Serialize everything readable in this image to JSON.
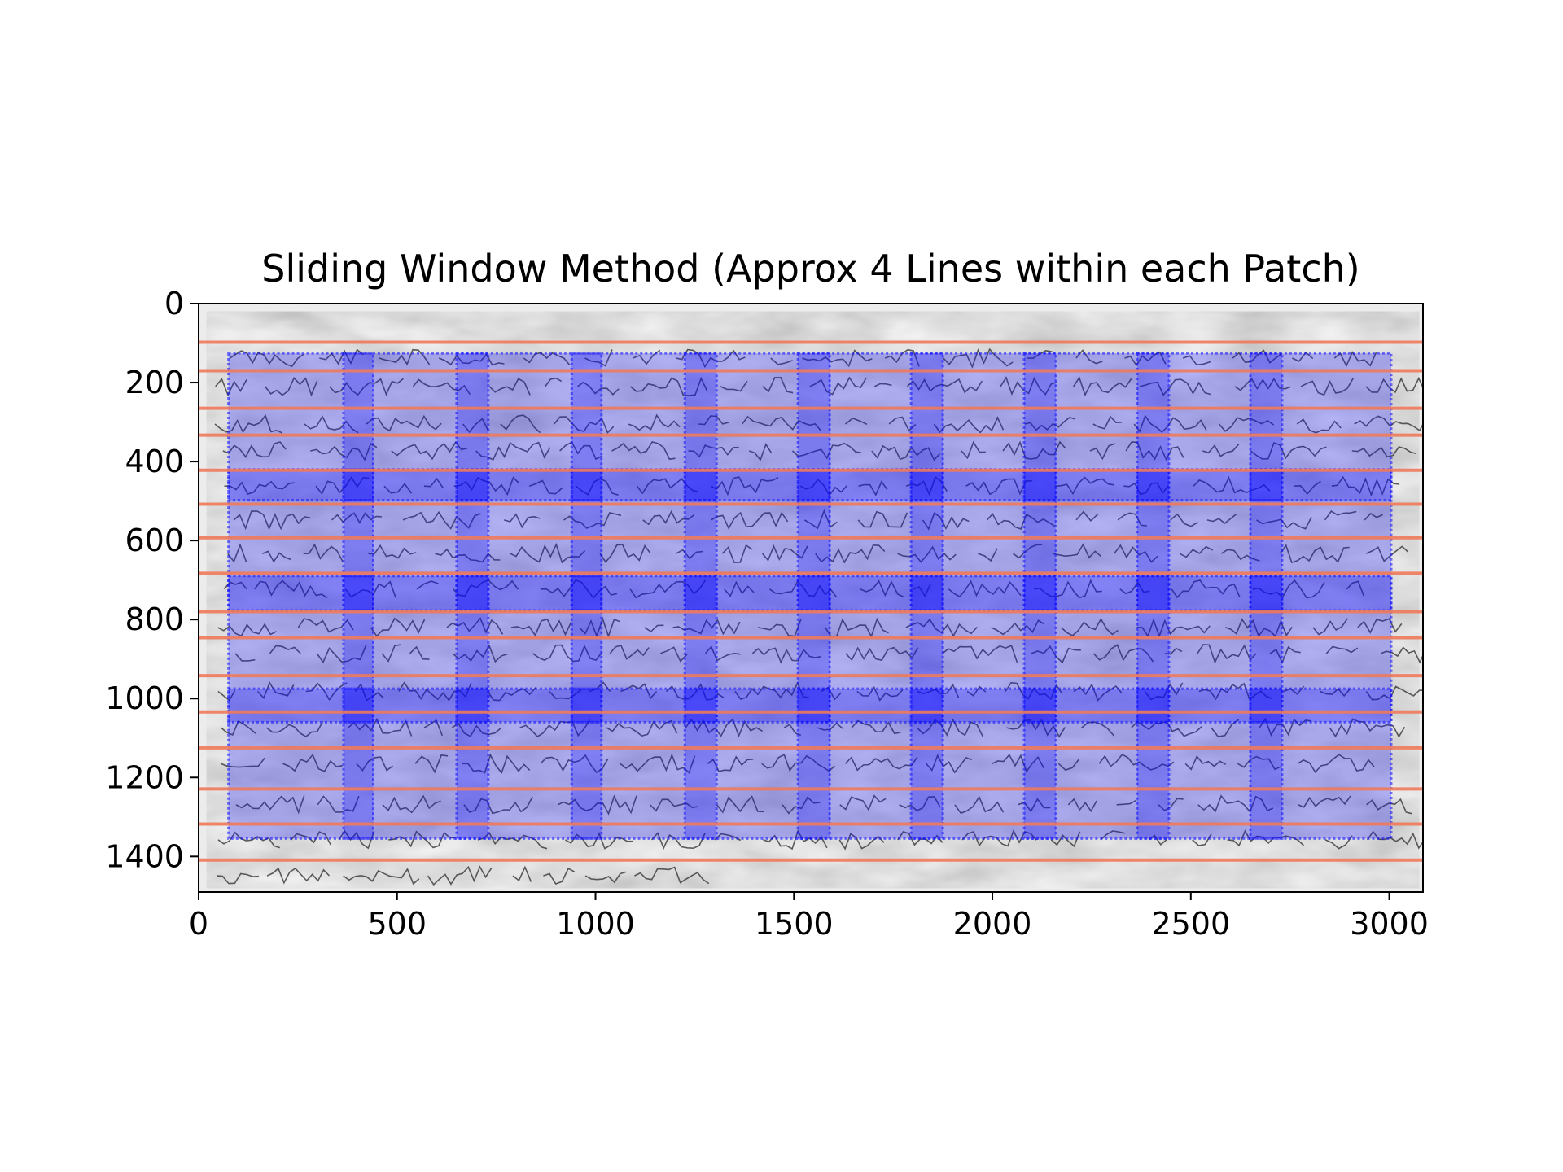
{
  "chart_data": {
    "type": "heatmap",
    "title": "Sliding Window Method (Approx 4 Lines within each Patch)",
    "xlabel": "",
    "ylabel": "",
    "xlim": [
      0,
      3085
    ],
    "ylim": [
      1490,
      0
    ],
    "y_axis_inverted": true,
    "grid": false,
    "x_ticks": [
      0,
      500,
      1000,
      1500,
      2000,
      2500,
      3000
    ],
    "y_ticks": [
      0,
      200,
      400,
      600,
      800,
      1000,
      1200,
      1400
    ],
    "background_image": "grayscale handwritten manuscript page",
    "text_lines_color": "#f07a5a",
    "text_line_y": [
      98,
      170,
      265,
      333,
      422,
      508,
      593,
      683,
      780,
      846,
      942,
      1034,
      1125,
      1229,
      1318,
      1409
    ],
    "patch_color": "#1010ff",
    "patch_opacity": 0.28,
    "patch_border_style": "dotted",
    "patch_columns": {
      "x_starts": [
        75,
        365,
        650,
        940,
        1225,
        1510,
        1795,
        2080,
        2365,
        2650
      ],
      "width": 365,
      "image_right": 3005
    },
    "patch_rows": [
      {
        "y": 126,
        "height": 372
      },
      {
        "y": 420,
        "height": 357
      },
      {
        "y": 690,
        "height": 370
      },
      {
        "y": 975,
        "height": 380
      }
    ]
  }
}
